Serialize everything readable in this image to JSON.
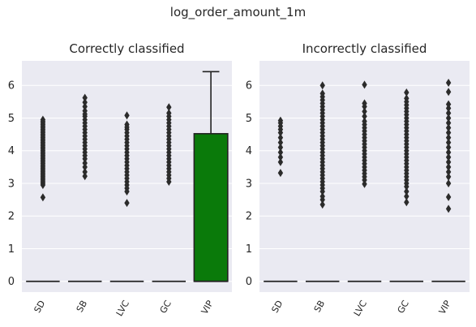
{
  "figure": {
    "title": "log_order_amount_1m"
  },
  "chart_data": [
    {
      "type": "box",
      "title": "Correctly classified",
      "categories": [
        "SD",
        "SB",
        "LVC",
        "GC",
        "VIP"
      ],
      "ylim": [
        -0.33,
        6.75
      ],
      "yticks": [
        0,
        1,
        2,
        3,
        4,
        5,
        6
      ],
      "grid": true,
      "boxes": [
        {
          "category": "SD",
          "q1": 0,
          "median": 0,
          "q3": 0,
          "whisker_low": 0,
          "whisker_high": 0,
          "outliers": [
            2.57,
            2.95,
            3.0,
            3.05,
            3.1,
            3.15,
            3.2,
            3.25,
            3.3,
            3.35,
            3.4,
            3.45,
            3.5,
            3.55,
            3.6,
            3.65,
            3.7,
            3.75,
            3.8,
            3.85,
            3.9,
            3.95,
            4.0,
            4.05,
            4.1,
            4.15,
            4.2,
            4.25,
            4.3,
            4.35,
            4.4,
            4.45,
            4.5,
            4.55,
            4.6,
            4.65,
            4.7,
            4.75,
            4.8,
            4.85,
            4.9,
            4.95
          ]
        },
        {
          "category": "SB",
          "q1": 0,
          "median": 0,
          "q3": 0,
          "whisker_low": 0,
          "whisker_high": 0,
          "outliers": [
            3.22,
            3.35,
            3.5,
            3.62,
            3.75,
            3.85,
            3.95,
            4.05,
            4.15,
            4.25,
            4.35,
            4.45,
            4.55,
            4.65,
            4.75,
            4.85,
            4.95,
            5.05,
            5.12,
            5.22,
            5.35,
            5.48,
            5.62
          ]
        },
        {
          "category": "LVC",
          "q1": 0,
          "median": 0,
          "q3": 0,
          "whisker_low": 0,
          "whisker_high": 0,
          "outliers": [
            2.4,
            2.75,
            2.85,
            2.95,
            3.05,
            3.15,
            3.25,
            3.35,
            3.45,
            3.55,
            3.65,
            3.75,
            3.85,
            3.95,
            4.05,
            4.15,
            4.25,
            4.35,
            4.45,
            4.55,
            4.65,
            4.72,
            4.8,
            5.08
          ]
        },
        {
          "category": "GC",
          "q1": 0,
          "median": 0,
          "q3": 0,
          "whisker_low": 0,
          "whisker_high": 0,
          "outliers": [
            3.05,
            3.15,
            3.25,
            3.35,
            3.45,
            3.55,
            3.65,
            3.75,
            3.85,
            3.95,
            4.05,
            4.15,
            4.25,
            4.35,
            4.45,
            4.55,
            4.65,
            4.75,
            4.85,
            4.95,
            5.05,
            5.15,
            5.33
          ]
        },
        {
          "category": "VIP",
          "q1": 0,
          "median": 0,
          "q3": 4.52,
          "whisker_low": 0,
          "whisker_high": 6.42,
          "outliers": [],
          "color": "#0a7a0a"
        }
      ]
    },
    {
      "type": "box",
      "title": "Incorrectly classified",
      "categories": [
        "SD",
        "SB",
        "LVC",
        "GC",
        "VIP"
      ],
      "ylim": [
        -0.33,
        6.75
      ],
      "yticks": [
        0,
        1,
        2,
        3,
        4,
        5,
        6
      ],
      "grid": true,
      "boxes": [
        {
          "category": "SD",
          "q1": 0,
          "median": 0,
          "q3": 0,
          "whisker_low": 0,
          "whisker_high": 0,
          "outliers": [
            3.32,
            3.65,
            3.8,
            3.95,
            4.1,
            4.25,
            4.4,
            4.55,
            4.65,
            4.75,
            4.85,
            4.92
          ]
        },
        {
          "category": "SB",
          "q1": 0,
          "median": 0,
          "q3": 0,
          "whisker_low": 0,
          "whisker_high": 0,
          "outliers": [
            2.35,
            2.5,
            2.6,
            2.75,
            2.85,
            2.95,
            3.05,
            3.15,
            3.25,
            3.35,
            3.45,
            3.55,
            3.65,
            3.75,
            3.85,
            3.95,
            4.05,
            4.15,
            4.25,
            4.35,
            4.45,
            4.55,
            4.65,
            4.75,
            4.85,
            4.95,
            5.05,
            5.15,
            5.25,
            5.35,
            5.45,
            5.55,
            5.65,
            5.75,
            6.0
          ]
        },
        {
          "category": "LVC",
          "q1": 0,
          "median": 0,
          "q3": 0,
          "whisker_low": 0,
          "whisker_high": 0,
          "outliers": [
            2.98,
            3.1,
            3.2,
            3.3,
            3.4,
            3.5,
            3.6,
            3.7,
            3.8,
            3.9,
            4.0,
            4.1,
            4.2,
            4.3,
            4.4,
            4.5,
            4.6,
            4.7,
            4.8,
            4.9,
            5.05,
            5.2,
            5.35,
            5.45,
            6.02
          ]
        },
        {
          "category": "GC",
          "q1": 0,
          "median": 0,
          "q3": 0,
          "whisker_low": 0,
          "whisker_high": 0,
          "outliers": [
            2.42,
            2.6,
            2.75,
            2.9,
            3.0,
            3.1,
            3.2,
            3.3,
            3.4,
            3.5,
            3.6,
            3.7,
            3.8,
            3.9,
            4.0,
            4.1,
            4.2,
            4.3,
            4.4,
            4.5,
            4.6,
            4.7,
            4.8,
            4.9,
            5.0,
            5.1,
            5.2,
            5.3,
            5.4,
            5.5,
            5.6,
            5.78
          ]
        },
        {
          "category": "VIP",
          "q1": 0,
          "median": 0,
          "q3": 0,
          "whisker_low": 0,
          "whisker_high": 0,
          "outliers": [
            2.22,
            2.58,
            3.0,
            3.2,
            3.35,
            3.5,
            3.65,
            3.8,
            3.95,
            4.1,
            4.25,
            4.4,
            4.55,
            4.7,
            4.85,
            5.0,
            5.15,
            5.3,
            5.42,
            5.8,
            6.08
          ]
        }
      ]
    }
  ]
}
